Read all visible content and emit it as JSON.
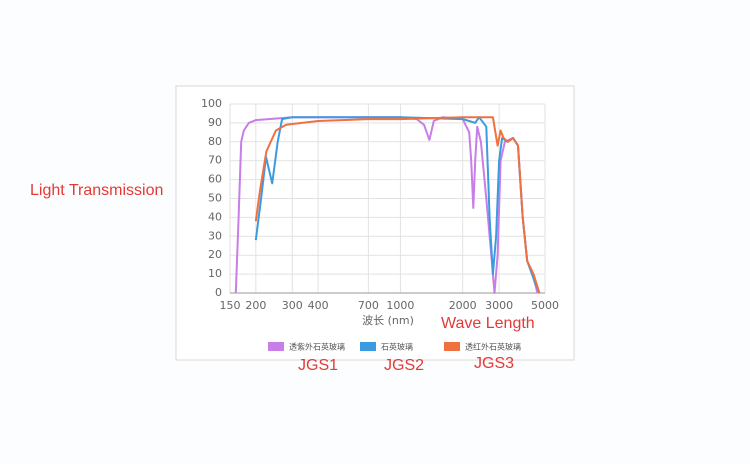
{
  "chart_data": {
    "type": "line",
    "x_label": "波长 (nm)",
    "xscale": "log",
    "xlim": [
      150,
      5000
    ],
    "xticks": [
      150,
      200,
      300,
      400,
      700,
      1000,
      2000,
      3000,
      5000
    ],
    "ylim": [
      0,
      100
    ],
    "yticks": [
      0,
      10,
      20,
      30,
      40,
      50,
      60,
      70,
      80,
      90,
      100
    ],
    "grid": true,
    "legend": "bottom",
    "series": [
      {
        "name": "透紫外石英玻璃",
        "color": "#c77ee6",
        "x": [
          160,
          165,
          170,
          175,
          185,
          200,
          300,
          500,
          1000,
          1200,
          1300,
          1380,
          1450,
          1600,
          2000,
          2150,
          2200,
          2250,
          2300,
          2350,
          2450,
          2600,
          2750,
          2850,
          2950,
          3050,
          3200,
          3500,
          3700,
          3900,
          4100,
          4400,
          4600
        ],
        "values": [
          0,
          40,
          80,
          86,
          90,
          91.5,
          93,
          93,
          93,
          92,
          89,
          81,
          91,
          93,
          92,
          85,
          70,
          45,
          70,
          88,
          80,
          50,
          20,
          0,
          20,
          70,
          80,
          82,
          78,
          40,
          17,
          8,
          0
        ]
      },
      {
        "name": "石英玻璃",
        "color": "#3a9be0",
        "x": [
          200,
          212,
          224,
          240,
          255,
          268,
          300,
          1000,
          2000,
          2150,
          2300,
          2400,
          2600,
          2700,
          2800,
          2900,
          3000,
          3100,
          3300,
          3500,
          3700,
          3900,
          4100,
          4500,
          4700
        ],
        "values": [
          28,
          50,
          72,
          58,
          80,
          92,
          93,
          93,
          92,
          91,
          90,
          93,
          88,
          40,
          10,
          30,
          70,
          82,
          80,
          82,
          78,
          40,
          17,
          5,
          0
        ]
      },
      {
        "name": "透红外石英玻璃",
        "color": "#f07040",
        "x": [
          200,
          210,
          225,
          250,
          280,
          400,
          700,
          1000,
          2000,
          2600,
          2800,
          2950,
          3050,
          3150,
          3300,
          3500,
          3700,
          3900,
          4100,
          4400,
          4700
        ],
        "values": [
          38,
          55,
          75,
          86,
          89,
          91,
          92,
          92,
          93,
          93,
          93,
          78,
          86,
          82,
          80,
          82,
          78,
          40,
          17,
          10,
          0
        ]
      }
    ],
    "annotations": [
      "Light Transmission",
      "Wave Length",
      "JGS1",
      "JGS2",
      "JGS3"
    ]
  }
}
